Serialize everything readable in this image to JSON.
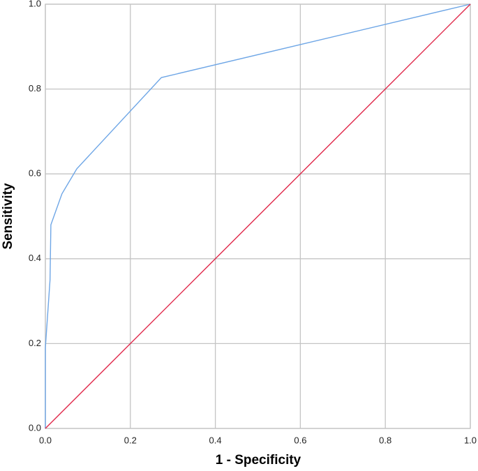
{
  "chart_data": {
    "type": "line",
    "x_label": "1 - Specificity",
    "y_label": "Sensitivity",
    "xlim": [
      0,
      1
    ],
    "ylim": [
      0,
      1
    ],
    "xticks": [
      {
        "value": 0,
        "label": "0.0"
      },
      0.2,
      0.4,
      0.6,
      0.8,
      {
        "value": 1,
        "label": "1.0"
      }
    ],
    "yticks": [
      {
        "value": 0,
        "label": "0.0"
      },
      0.2,
      0.4,
      0.6,
      0.8,
      {
        "value": 1,
        "label": "1.0"
      }
    ],
    "grid": true,
    "series": [
      {
        "color": "#6ea6e6",
        "x": [
          0,
          0,
          0.011,
          0.013,
          0.039,
          0.074,
          0.273,
          1
        ],
        "values": [
          0,
          0.19,
          0.35,
          0.48,
          0.553,
          0.612,
          0.827,
          1
        ]
      },
      {
        "color": "#e0284a",
        "x": [
          0,
          1
        ],
        "values": [
          0,
          1
        ]
      }
    ]
  }
}
